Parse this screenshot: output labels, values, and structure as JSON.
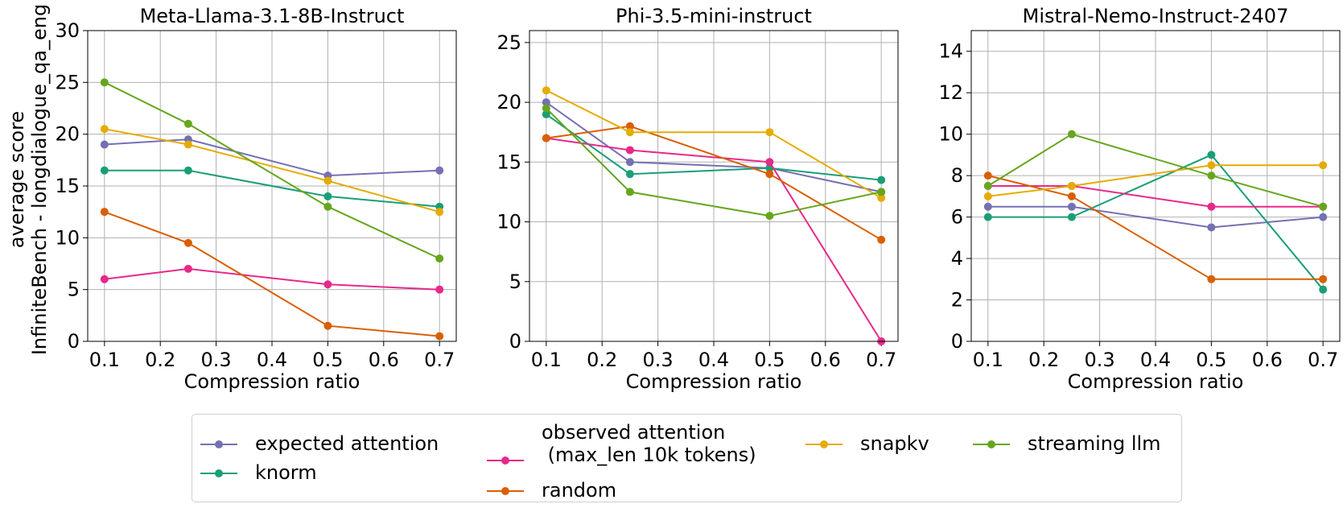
{
  "chart_data": [
    {
      "type": "line",
      "title": "Meta-Llama-3.1-8B-Instruct",
      "xlabel": "Compression ratio",
      "ylabel": "average score",
      "ylabel2": "InfiniteBench - longdialogue_qa_eng",
      "x": [
        0.1,
        0.25,
        0.5,
        0.7
      ],
      "xlim": [
        0.07,
        0.73
      ],
      "ylim": [
        0,
        30
      ],
      "xticks": [
        "0.1",
        "0.2",
        "0.3",
        "0.4",
        "0.5",
        "0.6",
        "0.7"
      ],
      "yticks": [
        "0",
        "5",
        "10",
        "15",
        "20",
        "25",
        "30"
      ],
      "grid": true,
      "series": [
        {
          "name": "expected attention",
          "values": [
            19,
            19.5,
            16,
            16.5
          ]
        },
        {
          "name": "knorm",
          "values": [
            16.5,
            16.5,
            14,
            13
          ]
        },
        {
          "name": "observed attention\n (max_len 10k tokens)",
          "values": [
            6,
            7,
            5.5,
            5
          ]
        },
        {
          "name": "random",
          "values": [
            12.5,
            9.5,
            1.5,
            0.5
          ]
        },
        {
          "name": "snapkv",
          "values": [
            20.5,
            19,
            15.5,
            12.5
          ]
        },
        {
          "name": "streaming llm",
          "values": [
            25,
            21,
            13,
            8
          ]
        }
      ]
    },
    {
      "type": "line",
      "title": "Phi-3.5-mini-instruct",
      "xlabel": "Compression ratio",
      "x": [
        0.1,
        0.25,
        0.5,
        0.7
      ],
      "xlim": [
        0.07,
        0.73
      ],
      "ylim": [
        0,
        26
      ],
      "xticks": [
        "0.1",
        "0.2",
        "0.3",
        "0.4",
        "0.5",
        "0.6",
        "0.7"
      ],
      "yticks": [
        "0",
        "5",
        "10",
        "15",
        "20",
        "25"
      ],
      "grid": true,
      "series": [
        {
          "name": "expected attention",
          "values": [
            20,
            15,
            14.5,
            12.5
          ]
        },
        {
          "name": "knorm",
          "values": [
            19,
            14,
            14.5,
            13.5
          ]
        },
        {
          "name": "observed attention\n (max_len 10k tokens)",
          "values": [
            17,
            16,
            15,
            0
          ]
        },
        {
          "name": "random",
          "values": [
            17,
            18,
            14,
            8.5
          ]
        },
        {
          "name": "snapkv",
          "values": [
            21,
            17.5,
            17.5,
            12
          ]
        },
        {
          "name": "streaming llm",
          "values": [
            19.5,
            12.5,
            10.5,
            12.5
          ]
        }
      ]
    },
    {
      "type": "line",
      "title": "Mistral-Nemo-Instruct-2407",
      "xlabel": "Compression ratio",
      "x": [
        0.1,
        0.25,
        0.5,
        0.7
      ],
      "xlim": [
        0.07,
        0.73
      ],
      "ylim": [
        0,
        15
      ],
      "xticks": [
        "0.1",
        "0.2",
        "0.3",
        "0.4",
        "0.5",
        "0.6",
        "0.7"
      ],
      "yticks": [
        "0",
        "2",
        "4",
        "6",
        "8",
        "10",
        "12",
        "14"
      ],
      "grid": true,
      "series": [
        {
          "name": "expected attention",
          "values": [
            6.5,
            6.5,
            5.5,
            6
          ]
        },
        {
          "name": "knorm",
          "values": [
            6,
            6,
            9,
            2.5
          ]
        },
        {
          "name": "observed attention\n (max_len 10k tokens)",
          "values": [
            7.5,
            7.5,
            6.5,
            6.5
          ]
        },
        {
          "name": "random",
          "values": [
            8,
            7,
            3,
            3
          ]
        },
        {
          "name": "snapkv",
          "values": [
            7,
            7.5,
            8.5,
            8.5
          ]
        },
        {
          "name": "streaming llm",
          "values": [
            7.5,
            10,
            8,
            6.5
          ]
        }
      ]
    }
  ],
  "colors": {
    "expected attention": "#7570b3",
    "knorm": "#1b9e77",
    "observed attention\n (max_len 10k tokens)": "#e7298a",
    "random": "#d95f02",
    "snapkv": "#e6ab02",
    "streaming llm": "#66a61e"
  },
  "legend": {
    "placement": "bottom-center",
    "entries": [
      {
        "label": "expected attention",
        "color": "#7570b3"
      },
      {
        "label": "knorm",
        "color": "#1b9e77"
      },
      {
        "label": "observed attention\n (max_len 10k tokens)",
        "color": "#e7298a"
      },
      {
        "label": "random",
        "color": "#d95f02"
      },
      {
        "label": "snapkv",
        "color": "#e6ab02"
      },
      {
        "label": "streaming llm",
        "color": "#66a61e"
      }
    ]
  }
}
